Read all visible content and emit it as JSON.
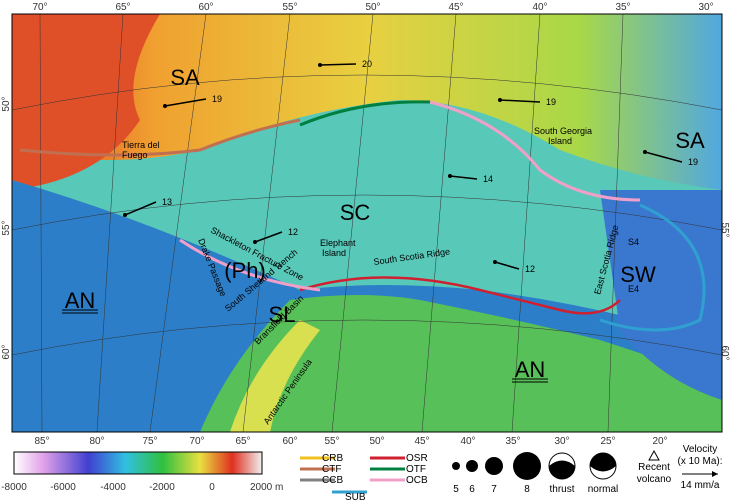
{
  "map": {
    "top_lon": [
      "70°",
      "65°",
      "60°",
      "55°",
      "50°",
      "45°",
      "40°",
      "35°",
      "30°"
    ],
    "bottom_lon": [
      "85°",
      "80°",
      "75°",
      "70°",
      "65°",
      "60°",
      "55°",
      "50°",
      "45°",
      "40°",
      "35°",
      "30°",
      "25°",
      "20°"
    ],
    "left_lat": [
      "50°",
      "55°",
      "60°"
    ],
    "right_lat": [
      "55°",
      "60°"
    ],
    "plates": [
      "SA",
      "SA",
      "SC",
      "SW",
      "AN",
      "AN",
      "(Ph)",
      "SL"
    ],
    "places": [
      "Tierra del",
      "Fuego",
      "South Georgia",
      "Island",
      "Elephant",
      "Island",
      "South Scotia Ridge",
      "Shackleton Fracture Zone",
      "Drake Passage",
      "South Shetland Trench",
      "Bransfield Basin",
      "Antarctic Peninsula",
      "East Scotia Ridge",
      "S4",
      "E4"
    ],
    "velocities": [
      "20",
      "19",
      "19",
      "19",
      "13",
      "12",
      "14",
      "12"
    ]
  },
  "legend": {
    "colorbar_ticks": [
      "-8000",
      "-6000",
      "-4000",
      "-2000",
      "0",
      "2000 m"
    ],
    "boundaries": [
      "CRB",
      "CTF",
      "CCB",
      "SUB",
      "OSR",
      "OTF",
      "OCB"
    ],
    "magnitudes": [
      "5",
      "6",
      "7",
      "8"
    ],
    "mechanisms": [
      "thrust",
      "normal"
    ],
    "volcano": [
      "Recent",
      "volcano"
    ],
    "velocity": [
      "Velocity",
      "(x 10 Ma):",
      "14 mm/a"
    ]
  }
}
